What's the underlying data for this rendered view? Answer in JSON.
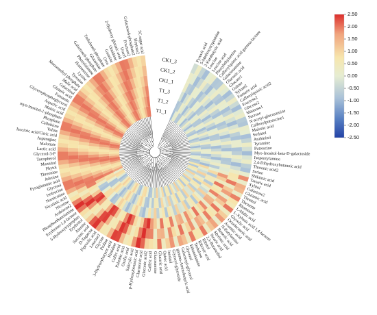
{
  "chart_data": {
    "type": "heatmap",
    "layout": "circular",
    "samples": [
      "CK1_3",
      "CK1_2",
      "CK1_1",
      "T1_3",
      "T1_2",
      "T1_1"
    ],
    "metabolites": [
      "Pyruvic acid",
      "5-Methoxytryptamine",
      "2-Ketobutyric acid",
      "Leucine",
      "Leucine acid",
      "Phenylethylamine",
      "Caffeoylquinic acid gamma-lactone",
      "Galactosamine",
      "Gluconic acid",
      "Glucose1",
      "Gulose",
      "Xylose2",
      "Fumaric acid",
      "Caffeoylquinic acid2",
      "Fructose2",
      "Glucose2",
      "Mannose1",
      "Sucrose",
      "N-acetyl-glucosamine",
      "Caffeoylputrescine1",
      "Malonic acid",
      "Sorbitol",
      "Arabinitol",
      "Tyramine",
      "Putrescine",
      "Myo-Inositol-beta-D-galactoside",
      "Isopentylamine",
      "2,4-Dihydroxybutanoic acid",
      "Threonic acid2",
      "Serine",
      "Shikimic acid",
      "Tartaric acid",
      "Xylitol",
      "Galactose2",
      "Glutamic acid",
      "Threitol",
      "Theanine",
      "Rhamnose",
      "L-Malic acid",
      "L-Xylonic acid 1,4-lactone",
      "Glycolic acid",
      "Octadecanoic acid",
      "Aconitic acid",
      "N-Butylamine",
      "Benzoic acid",
      "Myristic acid",
      "Stearic acid",
      "2,3-Butanediol",
      "Ribitol",
      "Ribonic acid",
      "Trehalose",
      "Ethanolamine",
      "Glycerol",
      "Galactosyl-glycerol",
      "gamma-Aminobutyric acid",
      "Glyceryl-glycoside",
      "Inositol",
      "Quinic acid",
      "Glucaric acid",
      "Glucosamine",
      "Caffeic acid",
      "Gluconic acid2",
      "Glucuronic acid",
      "p-Hydroxybenzoic acid",
      "Salicylic acid",
      "Oxalic acid",
      "Palmitic acid",
      "Gallic acid",
      "Histidine",
      "3-Hydroxybutyric acid",
      "Proline",
      "Glycine",
      "Leucine2",
      "Pipecolic acid",
      "D-Tagatose",
      "Succinic acid",
      "Alanine",
      "Erythritol",
      "5-Hydroxytryptophan",
      "Erythrono-1,4-lactone",
      "Phosphoethanolamine",
      "Arabinose2",
      "Nicotine",
      "Nicotinic acid",
      "Nornicotine",
      "Isoleucine",
      "Glycerol",
      "Pyroglutamic acid",
      "Adenine",
      "Threonine",
      "Phytol",
      "Mannitol",
      "Tocopherol",
      "Glycerol-3-P",
      "Lactic acid",
      "Malonate",
      "Asparagine",
      "Isocitric acid/Citric acid",
      "Valine",
      "Cellobiose",
      "Phosphate",
      "myo-Inositol-1-phosphate",
      "Maleic acid",
      "Aspartic acid",
      "Glycerophosphoglycerol",
      "Fumarate",
      "Glutaric acid",
      "Galactinol",
      "Malic acid",
      "Monomethyl phosphate",
      "Tyrosine",
      "Lysine",
      "Homoserine",
      "Phenylalanine",
      "Galactose6-phosphate",
      "Glutamine",
      "Trehalose6-phosphate",
      "Urea",
      "Guanine",
      "Ornithine",
      "2-Hydroxy glutaric acid",
      "Uracil",
      "Fructose2",
      "Galactose6-phosphate2",
      "Heptose2",
      "5C sugar acid"
    ],
    "colorbar": {
      "min": -2.5,
      "max": 2.5,
      "ticks": [
        "2.50",
        "2.00",
        "1.50",
        "1.00",
        "0.50",
        "0.00",
        "-0.50",
        "-1.00",
        "-1.50",
        "-2.00",
        "-2.50"
      ],
      "colors": [
        "#2242a6",
        "#5b83c4",
        "#a9c1d8",
        "#e6edd2",
        "#f7e6ad",
        "#f0a47e",
        "#dc2f2d"
      ]
    },
    "dendrogram": true
  }
}
